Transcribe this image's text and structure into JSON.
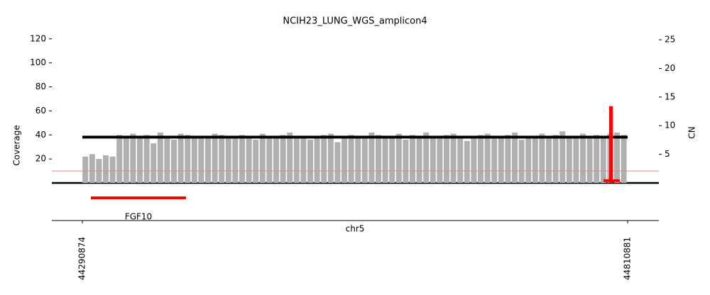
{
  "chart_data": {
    "type": "amplicon",
    "title": "NCIH23_LUNG_WGS_amplicon4",
    "ylabel": "Coverage",
    "y2label": "CN",
    "xlabel": "chr5",
    "xlim": [
      44261760,
      44840671
    ],
    "xticks": [
      44290874,
      44810881
    ],
    "ylim": [
      0,
      124
    ],
    "yticks": [
      20,
      40,
      60,
      80,
      100,
      120
    ],
    "y2lim": [
      0,
      26
    ],
    "y2ticks": [
      5,
      10,
      15,
      20,
      25
    ],
    "coverage_color": "#b0b0b0",
    "x": [
      44291000,
      44297500,
      44304000,
      44310500,
      44317000,
      44323500,
      44330000,
      44336500,
      44343000,
      44349500,
      44356000,
      44362500,
      44369000,
      44375500,
      44382000,
      44388500,
      44395000,
      44401500,
      44408000,
      44414500,
      44421000,
      44427500,
      44434000,
      44440500,
      44447000,
      44453500,
      44460000,
      44466500,
      44473000,
      44479500,
      44486000,
      44492500,
      44499000,
      44505500,
      44512000,
      44518500,
      44525000,
      44531500,
      44538000,
      44544500,
      44551000,
      44557500,
      44564000,
      44570500,
      44577000,
      44583500,
      44590000,
      44596500,
      44603000,
      44609500,
      44616000,
      44622500,
      44629000,
      44635500,
      44642000,
      44648500,
      44655000,
      44661500,
      44668000,
      44674500,
      44681000,
      44687500,
      44694000,
      44700500,
      44707000,
      44713500,
      44720000,
      44726500,
      44733000,
      44739500,
      44746000,
      44752500,
      44759000,
      44765500,
      44772000,
      44778500,
      44785000,
      44791500,
      44798000,
      44804500
    ],
    "coverage": [
      22,
      24,
      20,
      23,
      22,
      40,
      39,
      41,
      38,
      40,
      33,
      42,
      39,
      36,
      41,
      40,
      38,
      39,
      37,
      41,
      40,
      38,
      39,
      40,
      37,
      36,
      41,
      38,
      39,
      40,
      42,
      37,
      38,
      36,
      39,
      40,
      41,
      34,
      38,
      40,
      39,
      37,
      42,
      40,
      38,
      39,
      41,
      36,
      40,
      38,
      42,
      39,
      37,
      40,
      41,
      38,
      35,
      39,
      40,
      41,
      37,
      38,
      40,
      42,
      36,
      39,
      38,
      41,
      37,
      40,
      43,
      38,
      39,
      41,
      37,
      40,
      38,
      41,
      42,
      40
    ],
    "threshold": 10,
    "threshold_color": "#f08080",
    "segments": [
      {
        "start": 44290874,
        "end": 44810881,
        "cn": 8,
        "color": "#000000"
      },
      {
        "start": 44787827,
        "end": 44803399,
        "cn": 0.4,
        "color": "#ff0000"
      },
      {
        "start": 44793243,
        "end": 44795951,
        "cn": 13.4,
        "color": "#ff0000"
      }
    ],
    "genes": [
      {
        "name": "FGF10",
        "start": 44299000,
        "end": 44389720,
        "color": "#ff0000"
      }
    ]
  }
}
